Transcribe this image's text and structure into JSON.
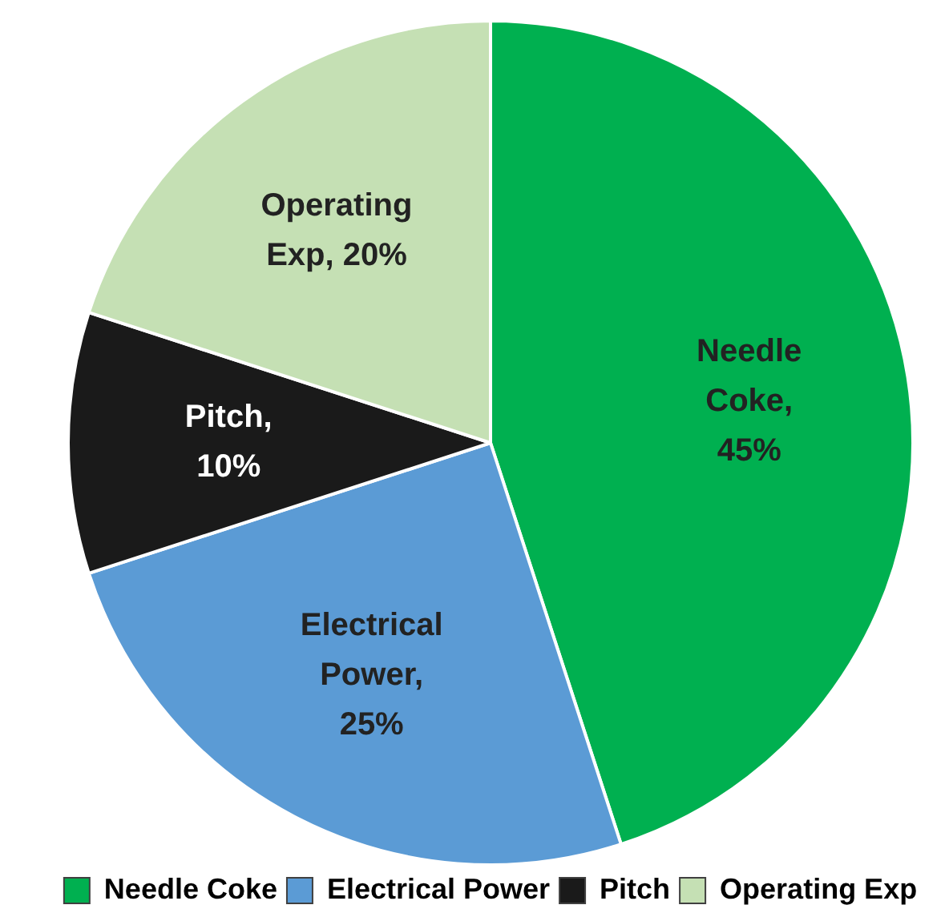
{
  "chart_data": {
    "type": "pie",
    "categories": [
      "Needle Coke",
      "Electrical Power",
      "Pitch",
      "Operating Exp"
    ],
    "values": [
      45,
      25,
      10,
      20
    ],
    "colors": [
      "#00b050",
      "#5b9bd5",
      "#1a1a1a",
      "#c5e0b4"
    ],
    "value_labels": [
      "Needle Coke, 45%",
      "Electrical Power, 25%",
      "Pitch, 10%",
      "Operating Exp, 20%"
    ],
    "legend": "bottom"
  }
}
